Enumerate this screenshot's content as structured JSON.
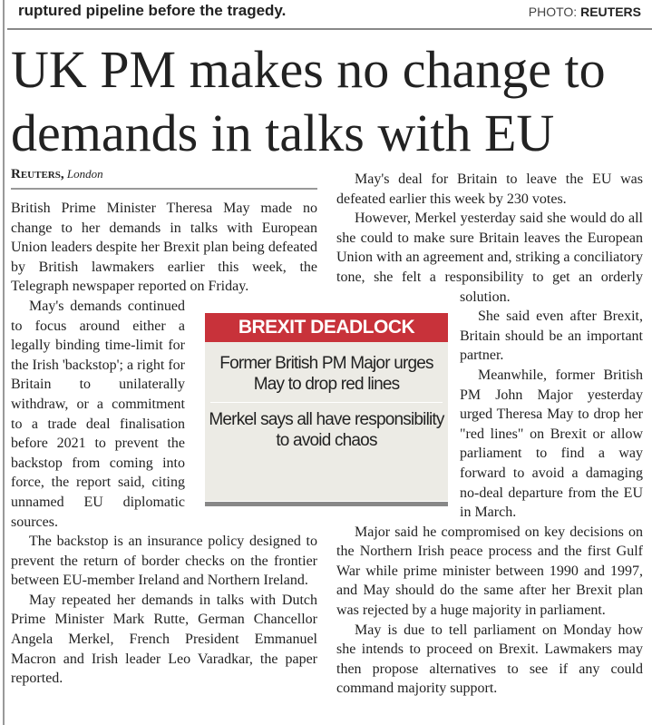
{
  "top_strip": {
    "caption": "ruptured pipeline before the tragedy.",
    "credit_prefix": "PHOTO: ",
    "credit_source": "REUTERS"
  },
  "article": {
    "headline": "UK PM makes no change to demands in talks with EU",
    "byline": {
      "agency": "Reuters,",
      "place": "London"
    },
    "left_column": [
      "British Prime Minister Theresa May made no change to her demands in talks with European Union leaders despite her Brexit plan being defeated by British lawmakers earlier this week, the Telegraph newspaper reported on Friday.",
      "May's demands continued to focus around either a legally binding time-limit for the Irish 'backstop'; a right for Britain to unilaterally withdraw, or a commitment to a trade deal finalisation before 2021 to prevent the backstop from coming into force, the report said, citing unnamed EU diplomatic sources.",
      "The backstop is an insurance policy designed to prevent the return of border checks on the frontier between EU-member Ireland and Northern Ireland.",
      "May repeated her demands in talks with Dutch Prime Minister Mark Rutte, German Chancellor Angela Merkel, French President Emmanuel Macron and Irish leader Leo Varadkar, the paper reported."
    ],
    "right_column": [
      "May's deal for Britain to leave the EU was defeated earlier this week by 230 votes.",
      "However, Merkel yesterday said she would do all she could to make sure Britain leaves the European Union with an agreement and, striking a conciliatory tone, she felt a responsibility to get an orderly solution.",
      "She said even after Brexit, Britain should be an important partner.",
      "Meanwhile, former British PM John Major yesterday urged Theresa May to drop her \"red lines\" on Brexit or allow parliament to find a way forward to avoid a damaging no-deal departure from the EU in March.",
      "Major said he compromised on key decisions on the Northern Irish peace process and the first Gulf War while prime minister between 1990 and 1997, and May should do the same after her Brexit plan was rejected by a huge majority in parliament.",
      "May is due to tell parliament on Monday how she intends to proceed on Brexit. Lawmakers may then propose alternatives to see if any could command majority support."
    ],
    "sidebar": {
      "title": "BREXIT DEADLOCK",
      "items": [
        "Former British PM Major urges May to drop red lines",
        "Merkel says all have responsibility to avoid chaos"
      ],
      "accent_color": "#c8323a"
    }
  }
}
